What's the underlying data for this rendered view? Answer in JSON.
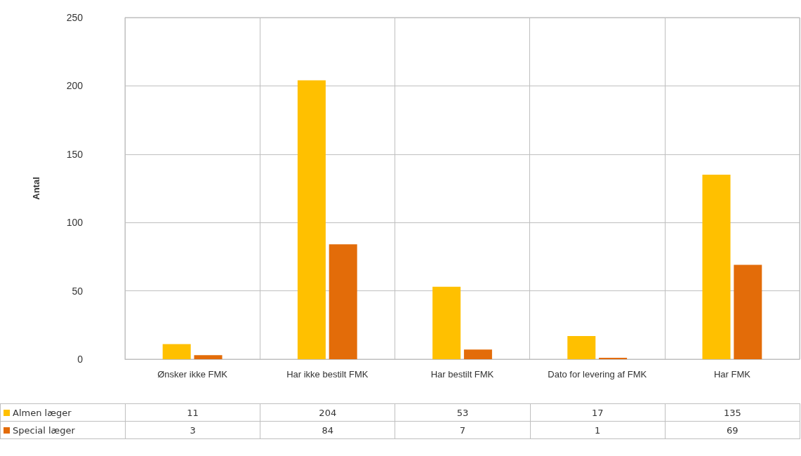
{
  "chart_data": {
    "type": "bar",
    "ylabel": "Antal",
    "categories": [
      "Ønsker ikke FMK",
      "Har ikke bestilt FMK",
      "Har bestilt FMK",
      "Dato for levering af FMK",
      "Har FMK"
    ],
    "series": [
      {
        "name": "Almen læger",
        "color": "#ffc000",
        "values": [
          11,
          204,
          53,
          17,
          135
        ]
      },
      {
        "name": "Special læger",
        "color": "#e36c09",
        "values": [
          3,
          84,
          7,
          1,
          69
        ]
      }
    ],
    "ylim": [
      0,
      250
    ],
    "yticks": [
      0,
      50,
      100,
      150,
      200,
      250
    ],
    "grid": "y",
    "legend": "bottom",
    "data_labels": true
  }
}
